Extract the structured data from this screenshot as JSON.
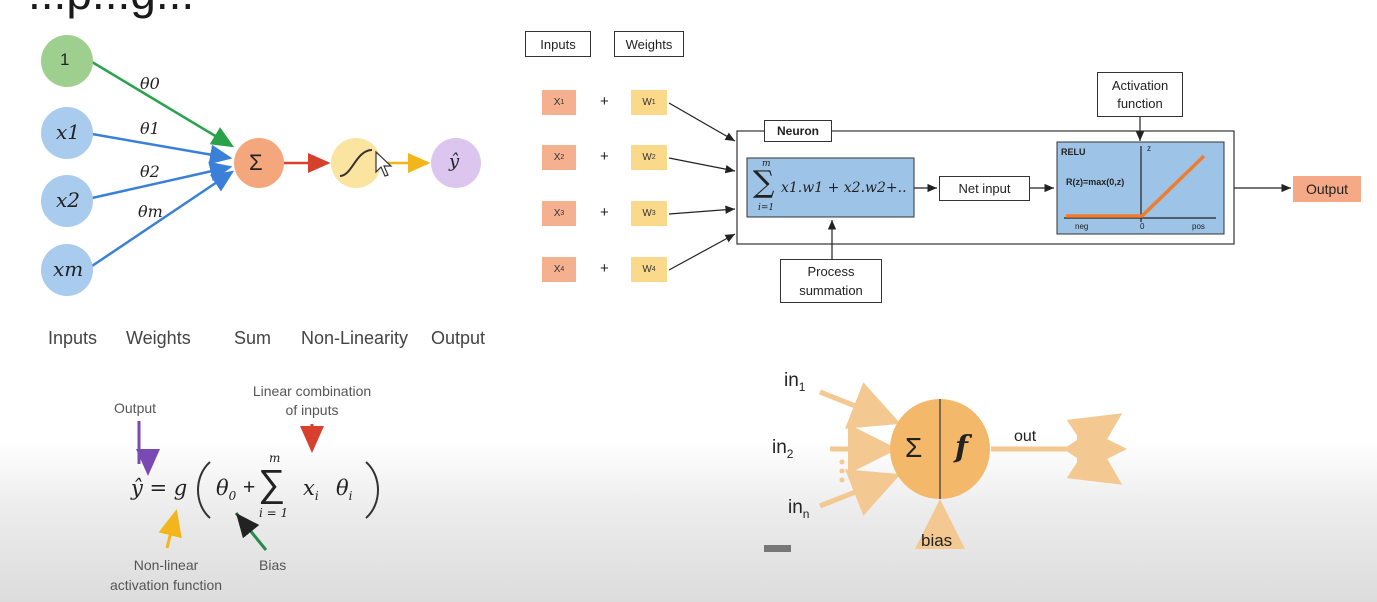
{
  "colors": {
    "bias_node": "#9fcf8f",
    "input_node": "#a9cbed",
    "sum_node": "#f4a77c",
    "nonlin_node": "#fbe3a0",
    "output_node": "#dcc6ef",
    "bias_arrow": "#2aa24a",
    "input_arrow": "#3a7fd8",
    "red_arrow": "#d6402c",
    "yellow_arrow": "#f2b51c",
    "purple_arrow": "#7a4ab3",
    "green_arrow": "#2a8a4a",
    "neuron_body": "#f4b86a",
    "neuron_lines": "#f3c891",
    "relu_bg": "#9dc3e6",
    "output_box": "#f6a986"
  },
  "top_left": {
    "title_fragment": "...p...g...",
    "bias_node_label": "1",
    "input_nodes": [
      "x1",
      "x2",
      "xm"
    ],
    "weights": [
      "θ0",
      "θ1",
      "θ2",
      "θm"
    ],
    "sum_symbol": "Σ",
    "output_symbol": "ŷ",
    "bottom_labels": [
      "Inputs",
      "Weights",
      "Sum",
      "Non-Linearity",
      "Output"
    ]
  },
  "formula": {
    "output_label": "Output",
    "linear_label_line1": "Linear combination",
    "linear_label_line2": "of inputs",
    "nonlinear_label_line1": "Non-linear",
    "nonlinear_label_line2": "activation function",
    "bias_label": "Bias",
    "lhs": "ŷ = g",
    "theta0": "θ",
    "theta0_sub": "0",
    "plus": "+",
    "sigma": "∑",
    "sigma_top": "m",
    "sigma_bottom": "i = 1",
    "term": "x",
    "term_sub": "i",
    "theta": "θ",
    "theta_sub": "i"
  },
  "neuron_diagram": {
    "inputs_header": "Inputs",
    "weights_header": "Weights",
    "x_inputs": [
      "X",
      "X",
      "X",
      "X"
    ],
    "x_subs": [
      "1",
      "2",
      "3",
      "4"
    ],
    "w_inputs": [
      "W",
      "W",
      "W",
      "W"
    ],
    "w_subs": [
      "1",
      "2",
      "3",
      "4"
    ],
    "plus": "+",
    "neuron_label": "Neuron",
    "sum_formula": "x1.w1 + x2.w2+..",
    "sum_top": "m",
    "sum_bottom": "i=1",
    "net_input_label": "Net input",
    "process_line1": "Process",
    "process_line2": "summation",
    "activation_line1": "Activation",
    "activation_line2": "function",
    "relu_title": "RELU",
    "relu_formula": "R(z)=max(0,z)",
    "relu_axis_z": "z",
    "relu_neg": "neg",
    "relu_zero": "0",
    "relu_pos": "pos",
    "output_label": "Output"
  },
  "simple_neuron": {
    "in1": "in",
    "in1_sub": "1",
    "in2": "in",
    "in2_sub": "2",
    "inn": "in",
    "inn_sub": "n",
    "sum_symbol": "Σ",
    "f_symbol": "f",
    "out_label": "out",
    "bias_label": "bias"
  }
}
